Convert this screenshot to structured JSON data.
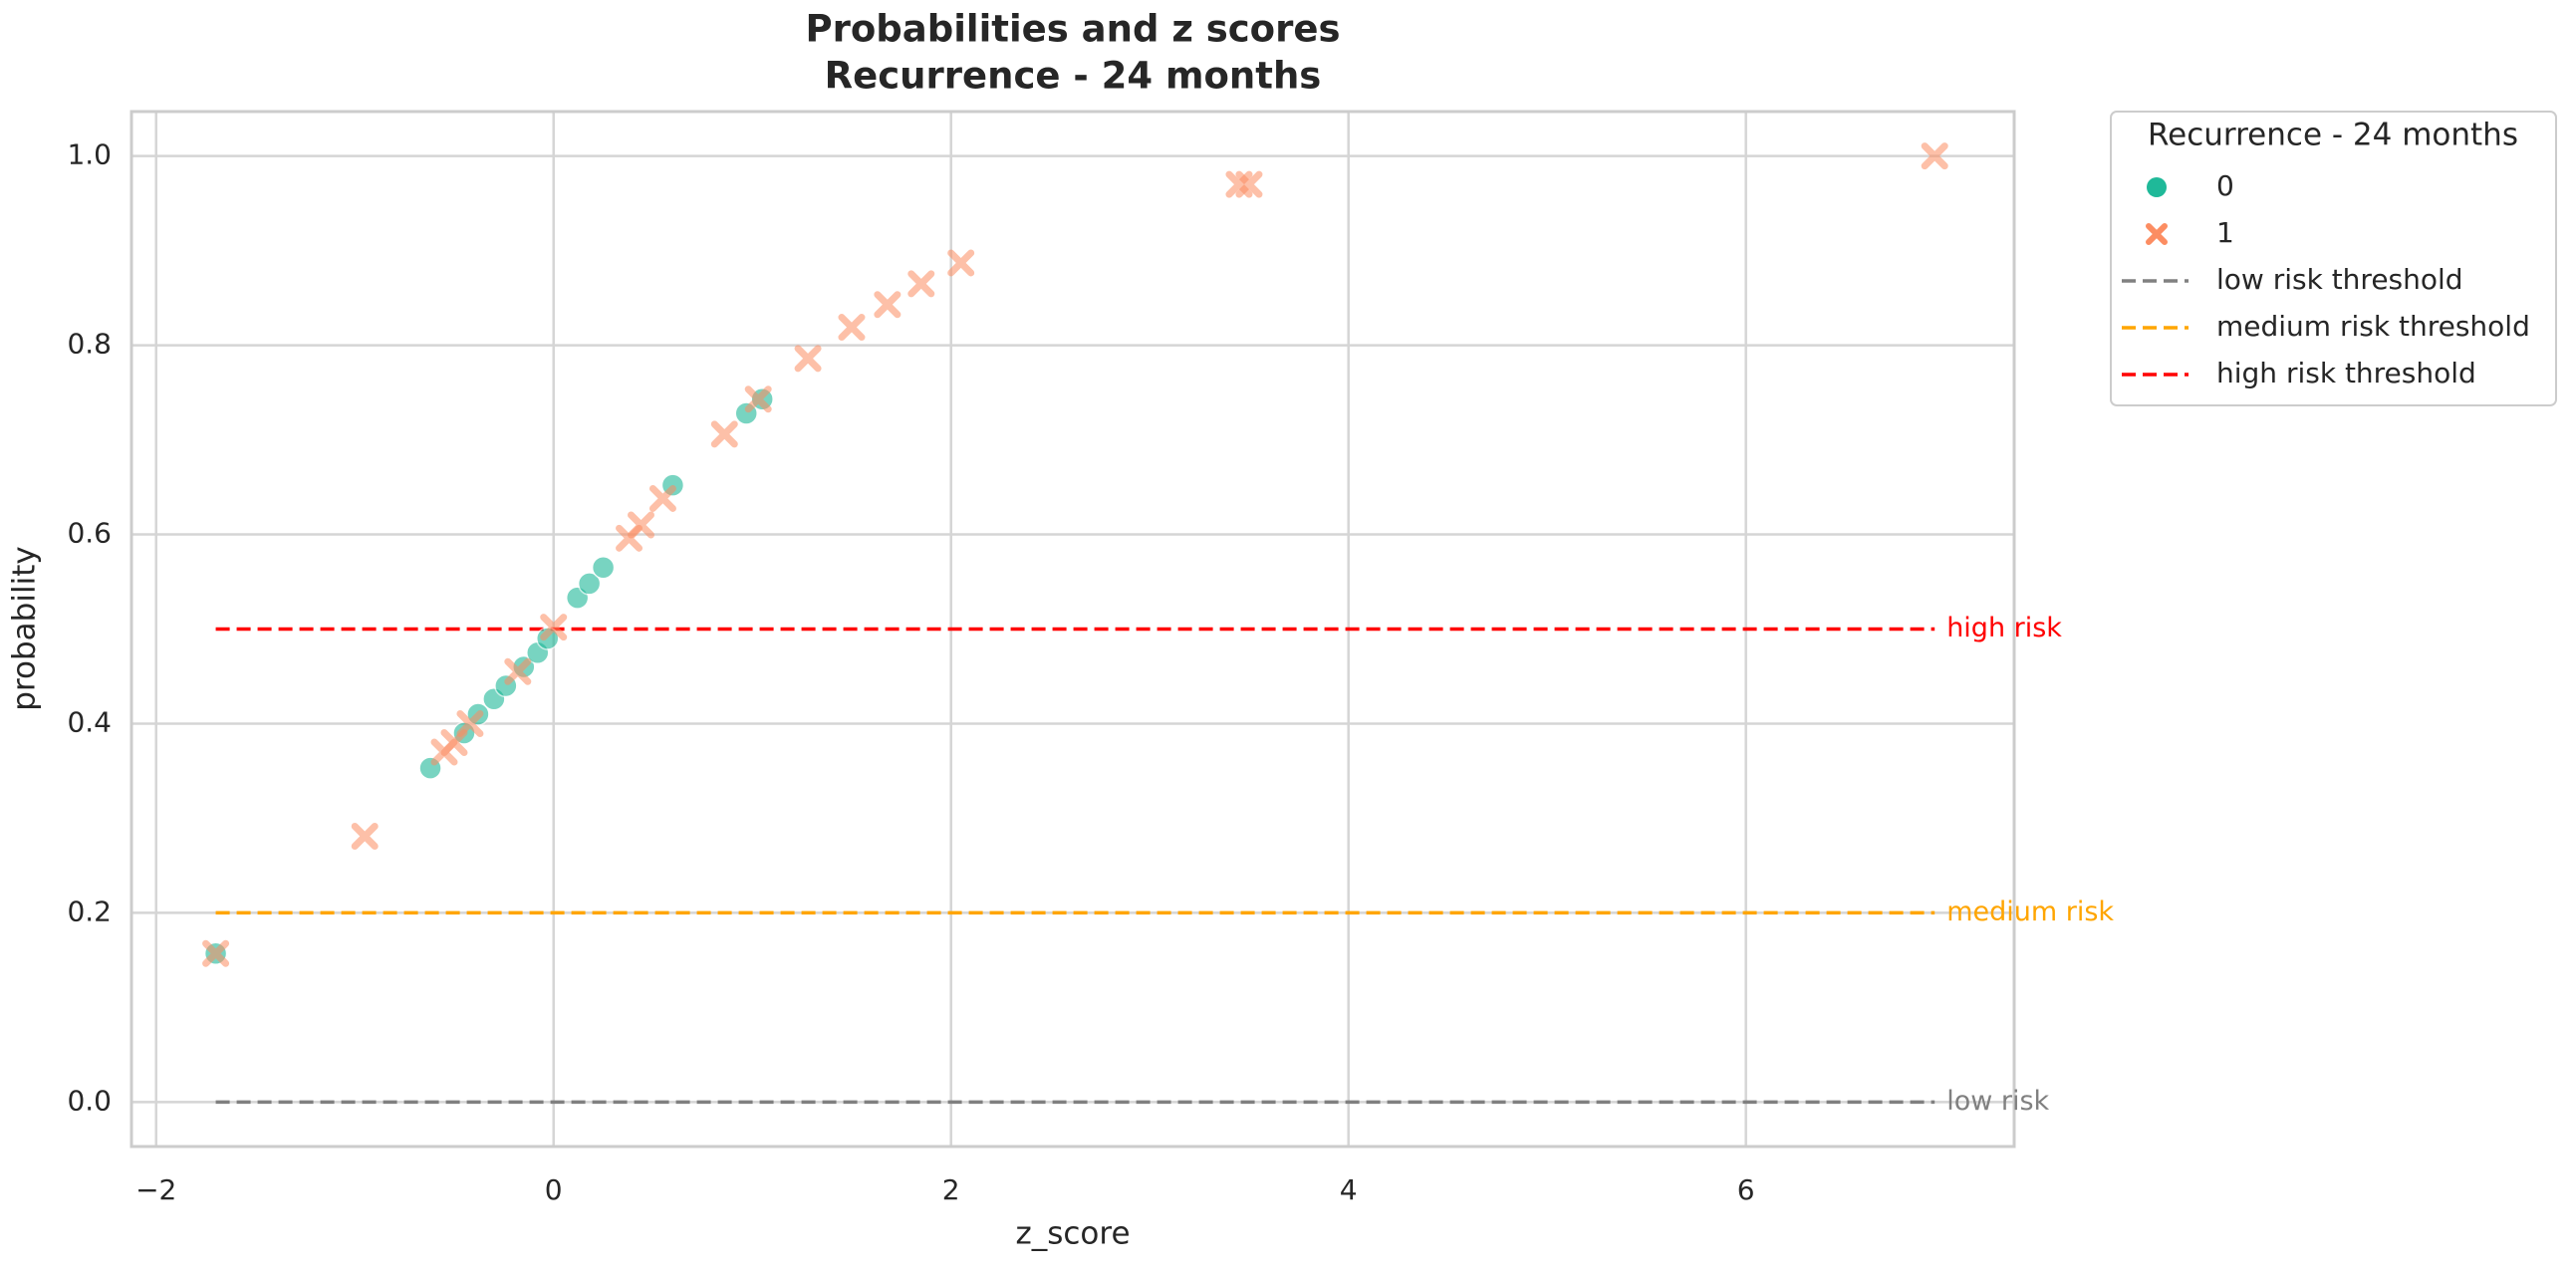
{
  "chart_data": {
    "type": "scatter",
    "title": "Probabilities and z scores",
    "subtitle": "Recurrence - 24 months",
    "xlabel": "z_score",
    "ylabel": "probability",
    "legend_title": "Recurrence - 24 months",
    "legend": "outside upper right",
    "grid": true,
    "xlim": [
      -2.124,
      7.35
    ],
    "ylim": [
      -0.047,
      1.047
    ],
    "xticks": [
      {
        "value": -2,
        "label": "−2"
      },
      0,
      2,
      4,
      6
    ],
    "yticks": [
      {
        "value": 0,
        "label": "0.0"
      },
      0.2,
      0.4,
      0.6,
      0.8,
      {
        "value": 1,
        "label": "1.0"
      }
    ],
    "series": [
      {
        "name": "0",
        "color": "#1fb999",
        "marker": "circle",
        "x": [
          -1.7,
          -0.62,
          -0.45,
          -0.38,
          -0.3,
          -0.24,
          -0.15,
          -0.08,
          -0.03,
          0.12,
          0.18,
          0.25,
          0.6,
          0.97,
          1.05
        ],
        "values": [
          0.157,
          0.353,
          0.39,
          0.41,
          0.426,
          0.44,
          0.46,
          0.475,
          0.49,
          0.533,
          0.548,
          0.565,
          0.652,
          0.728,
          0.743
        ]
      },
      {
        "name": "1",
        "color": "#fc8d62",
        "marker": "x",
        "x": [
          -1.7,
          -0.95,
          -0.55,
          -0.5,
          -0.42,
          -0.18,
          0.0,
          0.38,
          0.44,
          0.55,
          0.86,
          1.03,
          1.28,
          1.5,
          1.68,
          1.85,
          2.05,
          3.45,
          3.5,
          6.95
        ],
        "values": [
          0.157,
          0.281,
          0.37,
          0.38,
          0.4,
          0.455,
          0.502,
          0.596,
          0.61,
          0.638,
          0.706,
          0.743,
          0.786,
          0.819,
          0.843,
          0.865,
          0.887,
          0.97,
          0.97,
          1.0
        ]
      }
    ],
    "hlines": [
      {
        "name": "low risk threshold",
        "label": "low risk",
        "color": "gray",
        "y": 0,
        "x": [
          -1.7,
          6.95
        ]
      },
      {
        "name": "medium risk threshold",
        "label": "medium risk",
        "color": "orange",
        "y": 0.2,
        "x": [
          -1.7,
          6.95
        ]
      },
      {
        "name": "high risk threshold",
        "label": "high risk",
        "color": "red",
        "y": 0.5,
        "x": [
          -1.7,
          6.95
        ]
      }
    ]
  }
}
